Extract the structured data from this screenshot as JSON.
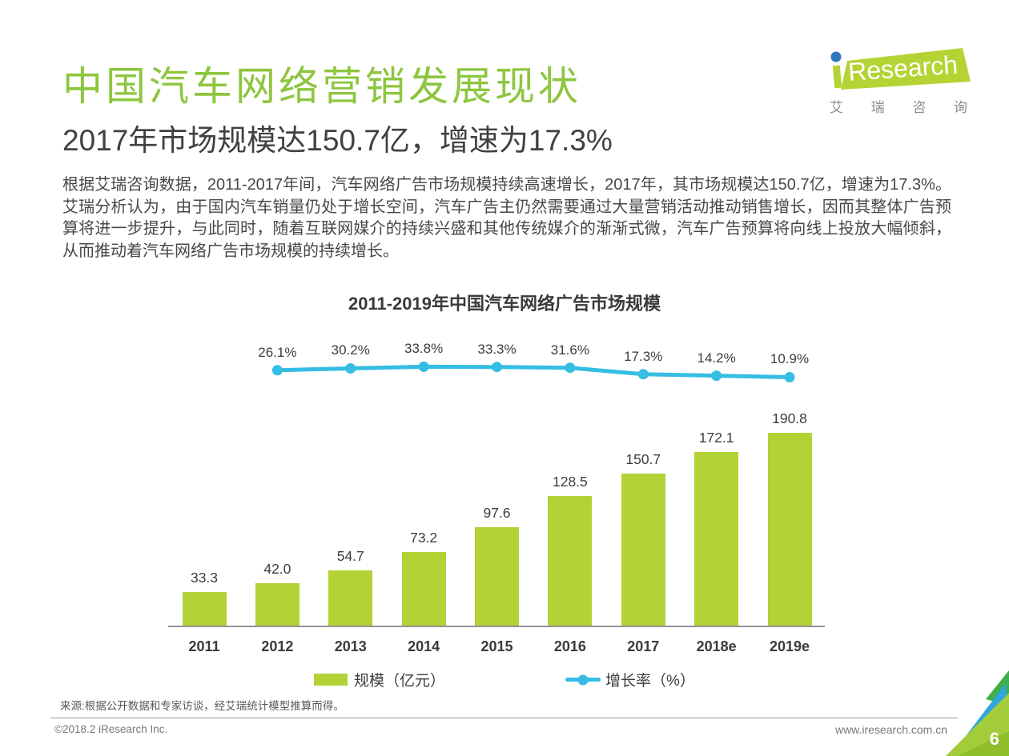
{
  "page": {
    "title": "中国汽车网络营销发展现状",
    "subtitle": "2017年市场规模达150.7亿，增速为17.3%",
    "body": "根据艾瑞咨询数据，2011-2017年间，汽车网络广告市场规模持续高速增长，2017年，其市场规模达150.7亿，增速为17.3%。艾瑞分析认为，由于国内汽车销量仍处于增长空间，汽车广告主仍然需要通过大量营销活动推动销售增长，因而其整体广告预算将进一步提升，与此同时，随着互联网媒介的持续兴盛和其他传统媒介的渐渐式微，汽车广告预算将向线上投放大幅倾斜，从而推动着汽车网络广告市场规模的持续增长。",
    "page_number": "6"
  },
  "logo": {
    "brand_i": "i",
    "brand": "Research",
    "chinese": [
      "艾",
      "瑞",
      "咨",
      "询"
    ]
  },
  "chart_data": {
    "type": "bar",
    "title": "2011-2019年中国汽车网络广告市场规模",
    "categories": [
      "2011",
      "2012",
      "2013",
      "2014",
      "2015",
      "2016",
      "2017",
      "2018e",
      "2019e"
    ],
    "series": [
      {
        "name": "规模（亿元）",
        "type": "bar",
        "values": [
          33.3,
          42.0,
          54.7,
          73.2,
          97.6,
          128.5,
          150.7,
          172.1,
          190.8
        ],
        "labels": [
          "33.3",
          "42.0",
          "54.7",
          "73.2",
          "97.6",
          "128.5",
          "150.7",
          "172.1",
          "190.8"
        ],
        "color": "#b2d235"
      },
      {
        "name": "增长率（%）",
        "type": "line",
        "categories": [
          "2012",
          "2013",
          "2014",
          "2015",
          "2016",
          "2017",
          "2018e",
          "2019e"
        ],
        "values": [
          26.1,
          30.2,
          33.8,
          33.3,
          31.6,
          17.3,
          14.2,
          10.9
        ],
        "labels": [
          "26.1%",
          "30.2%",
          "33.8%",
          "33.3%",
          "31.6%",
          "17.3%",
          "14.2%",
          "10.9%"
        ],
        "color": "#35bde4"
      }
    ],
    "ylim": [
      0,
      288
    ],
    "grid": false,
    "legend_position": "bottom"
  },
  "legend": {
    "bar_label": "规模（亿元）",
    "line_label": "增长率（%）"
  },
  "source": "来源:根据公开数据和专家访谈，经艾瑞统计模型推算而得。",
  "footer": {
    "left": "©2018.2 iResearch Inc.",
    "right": "www.iresearch.com.cn"
  },
  "colors": {
    "title_green": "#8dc63f",
    "bar_green": "#b2d235",
    "line_cyan": "#35bde4",
    "logo_green": "#b5d334",
    "logo_dot_blue": "#2e77bc",
    "corner_green": "#3fae49",
    "corner_cyan": "#2ea7e0",
    "corner_lime": "#a3cc3a",
    "corner_dark_lime": "#8ebe2c"
  }
}
